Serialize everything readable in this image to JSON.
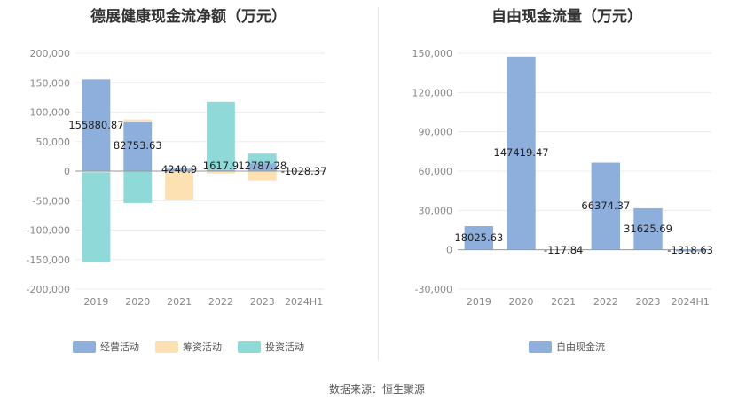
{
  "footer": {
    "source": "数据来源：恒生聚源"
  },
  "chart_data": [
    {
      "type": "bar",
      "stacked": true,
      "title": "德展健康现金流净额（万元）",
      "categories": [
        "2019",
        "2020",
        "2021",
        "2022",
        "2023",
        "2024H1"
      ],
      "ylim": [
        -200000,
        200000
      ],
      "yticks": [
        200000,
        150000,
        100000,
        50000,
        0,
        -50000,
        -100000,
        -150000,
        -200000
      ],
      "ytick_labels": [
        "200,000",
        "150,000",
        "100,000",
        "50,000",
        "0",
        "-50,000",
        "-100,000",
        "-150,000",
        "-200,000"
      ],
      "grid": true,
      "legend_position": "bottom",
      "series": [
        {
          "name": "经营活动",
          "color": "#8eaedb",
          "values": [
            155880.87,
            82753.63,
            4240.9,
            1617.9,
            12787.28,
            -1028.37
          ]
        },
        {
          "name": "筹资活动",
          "color": "#fde1b3",
          "values": [
            -2000,
            5000,
            -48000,
            -4000,
            -16000,
            0
          ]
        },
        {
          "name": "投资活动",
          "color": "#8fd9d9",
          "values": [
            -153000,
            -54000,
            0,
            116000,
            17000,
            0
          ]
        }
      ],
      "data_labels": [
        "155880.87",
        "82753.63",
        "4240.9",
        "1617.9",
        "12787.28",
        "-1028.37"
      ]
    },
    {
      "type": "bar",
      "title": "自由现金流量（万元）",
      "categories": [
        "2019",
        "2020",
        "2021",
        "2022",
        "2023",
        "2024H1"
      ],
      "ylim": [
        -30000,
        150000
      ],
      "yticks": [
        150000,
        120000,
        90000,
        60000,
        30000,
        0,
        -30000
      ],
      "ytick_labels": [
        "150,000",
        "120,000",
        "90,000",
        "60,000",
        "30,000",
        "0",
        "-30,000"
      ],
      "grid": true,
      "legend_position": "bottom",
      "series": [
        {
          "name": "自由现金流",
          "color": "#8eaedb",
          "values": [
            18025.63,
            147419.47,
            -117.84,
            66374.37,
            31625.69,
            -1318.63
          ]
        }
      ],
      "data_labels": [
        "18025.63",
        "147419.47",
        "-117.84",
        "66374.37",
        "31625.69",
        "-1318.63"
      ]
    }
  ]
}
